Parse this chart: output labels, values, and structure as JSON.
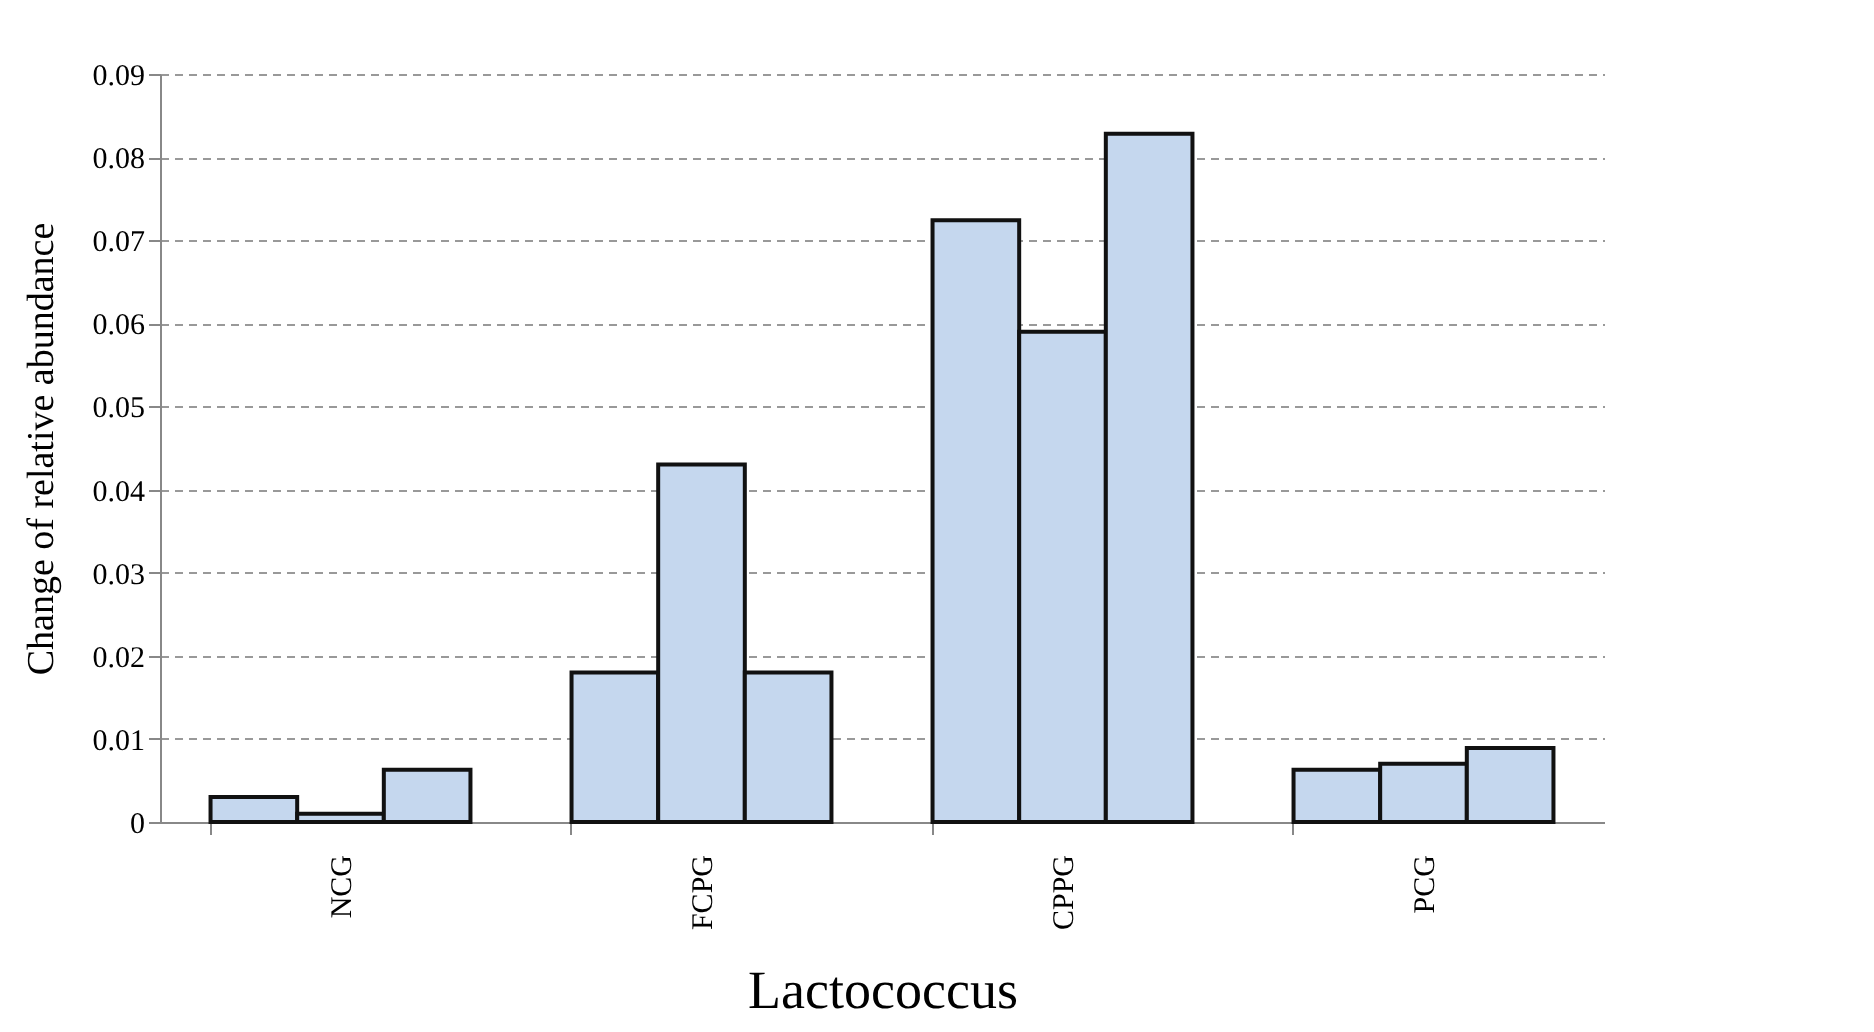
{
  "chart_data": {
    "type": "bar",
    "xlabel": "Lactococcus",
    "ylabel": "Change of relative abundance",
    "categories": [
      "NCG",
      "FCPG",
      "CPPG",
      "PCG"
    ],
    "series": [
      {
        "color": "#c5d7ee",
        "values": [
          0.003,
          0.018,
          0.0724,
          0.0063
        ]
      },
      {
        "color": "#c5d7ee",
        "values": [
          0.001,
          0.043,
          0.059,
          0.007
        ]
      },
      {
        "color": "#c5d7ee",
        "values": [
          0.0063,
          0.018,
          0.0828,
          0.0089
        ]
      }
    ],
    "ylim": [
      0,
      0.09
    ],
    "yticks": [
      0,
      0.01,
      0.02,
      0.03,
      0.04,
      0.05,
      0.06,
      0.07,
      0.08,
      0.09
    ],
    "grid": "y",
    "legend": false
  }
}
